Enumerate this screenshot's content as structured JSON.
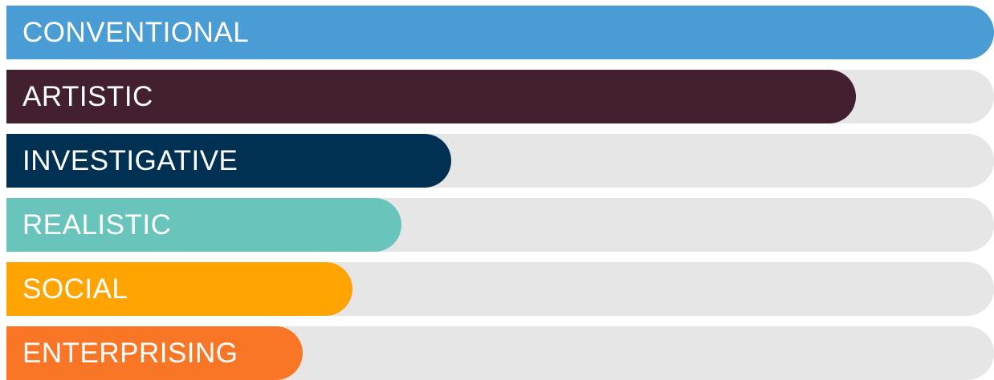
{
  "chart_data": {
    "type": "bar",
    "orientation": "horizontal",
    "categories": [
      "CONVENTIONAL",
      "ARTISTIC",
      "INVESTIGATIVE",
      "REALISTIC",
      "SOCIAL",
      "ENTERPRISING"
    ],
    "values": [
      100,
      86,
      45,
      40,
      35,
      30
    ],
    "xlim": [
      0,
      100
    ],
    "colors": [
      "#4a9cd4",
      "#422030",
      "#003153",
      "#69c5bc",
      "#ffa400",
      "#f97627"
    ],
    "track_color": "#e6e6e6",
    "title": "",
    "xlabel": "",
    "ylabel": "",
    "grid": false,
    "legend": "none"
  }
}
